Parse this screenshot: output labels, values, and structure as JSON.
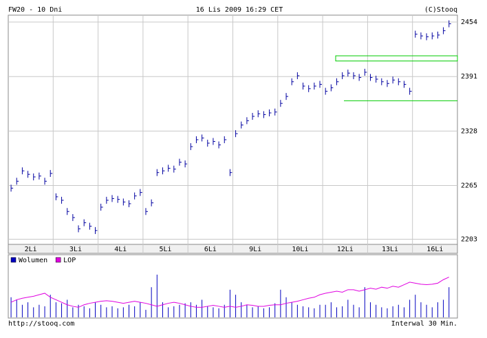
{
  "header": {
    "left": "FW20 - 10 Dni",
    "center": "16 Lis 2009 16:29 CET",
    "right": "(C)Stooq"
  },
  "footer": {
    "left": "http://stooq.com",
    "right": "Interwal 30 Min."
  },
  "chart_data": [
    {
      "type": "ohlc",
      "categories": [
        "2Li",
        "3Li",
        "4Li",
        "5Li",
        "6Li",
        "9Li",
        "10Li",
        "12Li",
        "13Li",
        "16Li"
      ],
      "ylim": [
        2197,
        2462
      ],
      "yticks": [
        2203,
        2265,
        2328,
        2391,
        2454
      ],
      "grid": true,
      "series": [
        {
          "color": "#0000a0",
          "close": [
            2262,
            2270,
            2282,
            2278,
            2275,
            2276,
            2270,
            2279,
            2252,
            2248,
            2235,
            2228,
            2215,
            2222,
            2218,
            2213,
            2240,
            2248,
            2250,
            2249,
            2246,
            2244,
            2253,
            2257,
            2235,
            2245,
            2280,
            2282,
            2285,
            2284,
            2292,
            2290,
            2310,
            2318,
            2320,
            2314,
            2316,
            2312,
            2318,
            2280,
            2325,
            2335,
            2340,
            2345,
            2348,
            2347,
            2349,
            2350,
            2360,
            2368,
            2385,
            2392,
            2380,
            2377,
            2380,
            2382,
            2374,
            2378,
            2385,
            2392,
            2395,
            2392,
            2390,
            2396,
            2390,
            2388,
            2385,
            2383,
            2387,
            2385,
            2382,
            2374,
            2440,
            2438,
            2437,
            2438,
            2439,
            2444,
            2452
          ],
          "low": [
            2258,
            2266,
            2278,
            2274,
            2271,
            2272,
            2266,
            2275,
            2248,
            2244,
            2231,
            2224,
            2211,
            2218,
            2214,
            2209,
            2236,
            2244,
            2246,
            2245,
            2242,
            2240,
            2249,
            2253,
            2231,
            2241,
            2276,
            2278,
            2281,
            2280,
            2288,
            2286,
            2306,
            2314,
            2316,
            2310,
            2312,
            2308,
            2314,
            2276,
            2321,
            2331,
            2336,
            2341,
            2344,
            2343,
            2345,
            2346,
            2356,
            2364,
            2381,
            2388,
            2376,
            2373,
            2376,
            2378,
            2370,
            2374,
            2381,
            2388,
            2391,
            2388,
            2386,
            2392,
            2386,
            2384,
            2381,
            2379,
            2383,
            2381,
            2378,
            2370,
            2436,
            2434,
            2433,
            2434,
            2435,
            2440,
            2448
          ],
          "high": [
            2266,
            2274,
            2286,
            2282,
            2279,
            2280,
            2274,
            2283,
            2256,
            2252,
            2239,
            2232,
            2219,
            2226,
            2222,
            2217,
            2244,
            2252,
            2254,
            2253,
            2250,
            2248,
            2257,
            2261,
            2239,
            2249,
            2284,
            2286,
            2289,
            2288,
            2296,
            2294,
            2314,
            2322,
            2324,
            2318,
            2320,
            2316,
            2322,
            2284,
            2329,
            2339,
            2344,
            2349,
            2352,
            2351,
            2353,
            2354,
            2364,
            2372,
            2389,
            2396,
            2384,
            2381,
            2384,
            2386,
            2378,
            2382,
            2389,
            2396,
            2399,
            2396,
            2394,
            2400,
            2394,
            2392,
            2389,
            2387,
            2391,
            2389,
            2386,
            2378,
            2444,
            2442,
            2441,
            2442,
            2443,
            2448,
            2456
          ]
        }
      ],
      "zone": {
        "color": "#00cc00",
        "low": 2409,
        "high": 2415
      },
      "level": {
        "color": "#00cc00",
        "value": 2363
      }
    },
    {
      "type": "volume",
      "ylim": [
        0,
        100
      ],
      "series": [
        {
          "name": "Wolumen",
          "color": "#0000c0",
          "values": [
            40,
            35,
            25,
            30,
            20,
            25,
            22,
            45,
            30,
            28,
            35,
            20,
            25,
            22,
            18,
            30,
            25,
            20,
            22,
            18,
            20,
            25,
            22,
            30,
            15,
            60,
            85,
            30,
            20,
            22,
            25,
            28,
            30,
            25,
            35,
            22,
            20,
            18,
            25,
            55,
            45,
            30,
            25,
            20,
            22,
            18,
            20,
            28,
            55,
            40,
            30,
            25,
            22,
            20,
            18,
            25,
            25,
            30,
            20,
            22,
            35,
            25,
            20,
            60,
            30,
            25,
            20,
            18,
            22,
            25,
            20,
            35,
            45,
            30,
            25,
            20,
            30,
            35,
            60
          ]
        },
        {
          "name": "LOP",
          "color": "#e000e0",
          "values": [
            30,
            35,
            38,
            40,
            42,
            45,
            48,
            40,
            35,
            30,
            25,
            22,
            20,
            25,
            28,
            30,
            32,
            33,
            32,
            30,
            28,
            30,
            32,
            30,
            28,
            25,
            22,
            25,
            28,
            30,
            28,
            25,
            22,
            20,
            20,
            22,
            24,
            22,
            20,
            22,
            20,
            22,
            25,
            24,
            22,
            22,
            24,
            25,
            25,
            28,
            30,
            32,
            35,
            38,
            40,
            45,
            48,
            50,
            52,
            50,
            55,
            55,
            52,
            55,
            58,
            56,
            60,
            58,
            62,
            60,
            65,
            70,
            68,
            66,
            65,
            66,
            68,
            75,
            80
          ]
        }
      ]
    }
  ]
}
